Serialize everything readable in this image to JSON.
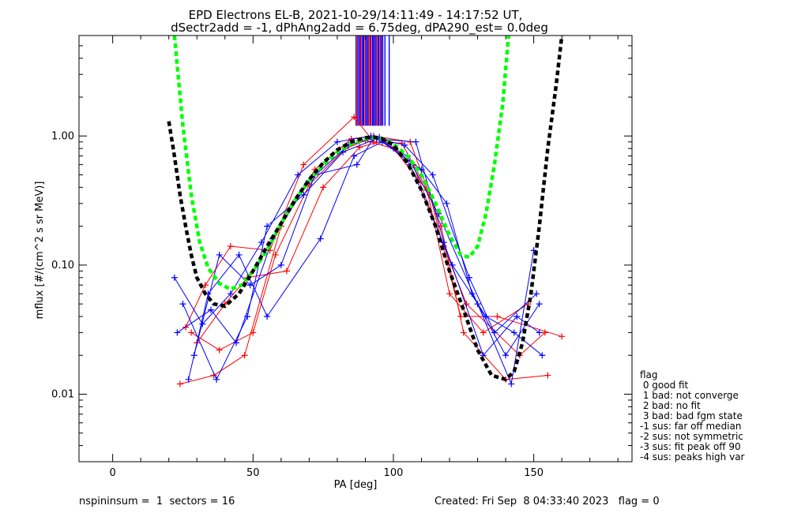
{
  "title_line1": "EPD Electrons EL-B, 2021-10-29/14:11:49 - 14:17:52 UT,",
  "title_line2": "dSectr2add = -1, dPhAng2add = 6.75deg, dPA290_est=   0.0deg",
  "footer_left": "nspininsum =  1  sectors = 16",
  "footer_right": "Created: Fri Sep  8 04:33:40 2023   flag = 0",
  "legend": {
    "title": "flag",
    "items": [
      " 0 good fit",
      " 1 bad: not converge",
      " 2 bad: no fit",
      " 3 bad: bad fgm state",
      "-1 sus: far off median",
      "-2 sus: not symmetric",
      "-3 sus: fit peak off 90",
      "-4 sus: peaks high var"
    ]
  },
  "colors": {
    "red": "#ff0000",
    "blue": "#0000ff",
    "green": "#00ff00",
    "black": "#000000"
  },
  "chart_data": {
    "type": "line",
    "title": "EPD Electrons EL-B, 2021-10-29/14:11:49 - 14:17:52 UT,",
    "subtitle": "dSectr2add = -1, dPhAng2add = 6.75deg, dPA290_est=   0.0deg",
    "xlabel": "PA [deg]",
    "ylabel": "mflux [#/(cm^2 s sr MeV)]",
    "xlim": [
      -12,
      185
    ],
    "ylim": [
      0.003,
      6.0
    ],
    "yscale": "log",
    "x_ticks": [
      0,
      50,
      100,
      150
    ],
    "x_tick_labels": [
      "0",
      "50",
      "100",
      "150"
    ],
    "y_ticks": [
      0.01,
      0.1,
      1.0
    ],
    "y_tick_labels": [
      "0.01",
      "0.10",
      "1.00"
    ],
    "grid": false,
    "series": [
      {
        "color": "red",
        "type": "line+plus",
        "x": [
          24,
          36,
          47,
          60,
          72,
          85,
          93,
          106,
          117,
          125,
          140,
          155
        ],
        "y": [
          0.012,
          0.014,
          0.02,
          0.2,
          0.55,
          0.95,
          1.0,
          0.9,
          0.2,
          0.03,
          0.013,
          0.014
        ]
      },
      {
        "color": "red",
        "type": "line+plus",
        "x": [
          26,
          33,
          42,
          56,
          68,
          86,
          93,
          103,
          113,
          124,
          137,
          160
        ],
        "y": [
          0.033,
          0.07,
          0.14,
          0.13,
          0.6,
          1.4,
          0.9,
          0.88,
          0.35,
          0.04,
          0.04,
          0.028
        ]
      },
      {
        "color": "red",
        "type": "line+plus",
        "x": [
          28,
          38,
          50,
          58,
          70,
          83,
          90,
          100,
          112,
          120,
          132,
          148
        ],
        "y": [
          0.03,
          0.022,
          0.03,
          0.12,
          0.42,
          0.8,
          0.92,
          0.8,
          0.38,
          0.06,
          0.03,
          0.05
        ]
      },
      {
        "color": "red",
        "type": "line+plus",
        "x": [
          30,
          40,
          48,
          62,
          75,
          88,
          97,
          107,
          118,
          126,
          145,
          154
        ],
        "y": [
          0.025,
          0.05,
          0.08,
          0.09,
          0.4,
          0.82,
          0.92,
          0.6,
          0.14,
          0.05,
          0.02,
          0.03
        ]
      },
      {
        "color": "blue",
        "type": "line+plus",
        "x": [
          22,
          32,
          42,
          53,
          66,
          80,
          92,
          105,
          116,
          130,
          142,
          150
        ],
        "y": [
          0.08,
          0.035,
          0.06,
          0.15,
          0.5,
          0.9,
          1.0,
          0.7,
          0.25,
          0.05,
          0.012,
          0.13
        ]
      },
      {
        "color": "blue",
        "type": "line+plus",
        "x": [
          25,
          37,
          48,
          55,
          68,
          82,
          94,
          108,
          118,
          132,
          144,
          152
        ],
        "y": [
          0.05,
          0.013,
          0.04,
          0.2,
          0.35,
          0.75,
          0.95,
          0.9,
          0.15,
          0.02,
          0.04,
          0.03
        ]
      },
      {
        "color": "blue",
        "type": "line+plus",
        "x": [
          27,
          34,
          45,
          55,
          74,
          86,
          96,
          110,
          119,
          128,
          140,
          152
        ],
        "y": [
          0.013,
          0.06,
          0.12,
          0.04,
          0.16,
          0.7,
          0.9,
          0.55,
          0.3,
          0.06,
          0.02,
          0.05
        ]
      },
      {
        "color": "blue",
        "type": "line+plus",
        "x": [
          23,
          35,
          44,
          57,
          70,
          84,
          95,
          106,
          121,
          133,
          143,
          153
        ],
        "y": [
          0.03,
          0.045,
          0.025,
          0.16,
          0.45,
          0.85,
          0.98,
          0.6,
          0.1,
          0.04,
          0.03,
          0.02
        ]
      },
      {
        "color": "blue",
        "type": "line+plus",
        "x": [
          29,
          38,
          49,
          60,
          72,
          87,
          93,
          104,
          114,
          127,
          136,
          151
        ],
        "y": [
          0.02,
          0.12,
          0.07,
          0.1,
          0.5,
          0.6,
          0.97,
          0.85,
          0.5,
          0.08,
          0.03,
          0.06
        ]
      },
      {
        "color": "green",
        "type": "dashed-fit",
        "x": [
          22,
          25,
          28,
          31,
          34,
          38,
          42,
          46,
          50,
          55,
          60,
          65,
          70,
          75,
          80,
          85,
          90,
          93,
          96,
          100,
          105,
          110,
          115,
          120,
          124,
          127,
          130,
          133,
          136,
          139,
          141
        ],
        "y": [
          6.0,
          1.2,
          0.35,
          0.15,
          0.095,
          0.072,
          0.065,
          0.07,
          0.09,
          0.13,
          0.21,
          0.32,
          0.45,
          0.6,
          0.75,
          0.87,
          0.95,
          0.97,
          0.95,
          0.87,
          0.7,
          0.5,
          0.3,
          0.17,
          0.12,
          0.115,
          0.14,
          0.25,
          0.6,
          1.8,
          6.0
        ]
      },
      {
        "color": "black",
        "type": "dashed-fit",
        "x": [
          20,
          22,
          24,
          26,
          28,
          30,
          33,
          36,
          40,
          45,
          50,
          55,
          60,
          65,
          70,
          75,
          80,
          85,
          90,
          93,
          96,
          100,
          105,
          110,
          115,
          120,
          125,
          130,
          135,
          140,
          143,
          146,
          149,
          152,
          155,
          158,
          160
        ],
        "y": [
          1.3,
          0.7,
          0.35,
          0.2,
          0.12,
          0.08,
          0.06,
          0.05,
          0.048,
          0.06,
          0.09,
          0.14,
          0.21,
          0.32,
          0.46,
          0.62,
          0.78,
          0.9,
          0.97,
          0.98,
          0.95,
          0.85,
          0.62,
          0.38,
          0.2,
          0.09,
          0.045,
          0.022,
          0.014,
          0.013,
          0.015,
          0.025,
          0.06,
          0.2,
          0.8,
          2.5,
          6.0
        ]
      }
    ],
    "vertical_lines": {
      "x_range": [
        86.5,
        99
      ],
      "y_from": 1.2,
      "y_to": 6.0,
      "x": [
        86.7,
        87.2,
        87.6,
        88.1,
        88.5,
        89.0,
        89.4,
        89.9,
        90.3,
        90.8,
        91.2,
        91.7,
        92.1,
        92.6,
        93.0,
        93.5,
        93.9,
        94.4,
        94.8,
        95.3,
        95.7,
        96.2,
        97.0,
        98.5
      ],
      "colors": [
        "blue",
        "red",
        "blue",
        "blue",
        "red",
        "blue",
        "blue",
        "red",
        "blue",
        "blue",
        "red",
        "blue",
        "red",
        "blue",
        "blue",
        "blue",
        "red",
        "blue",
        "blue",
        "red",
        "blue",
        "blue",
        "blue",
        "blue"
      ]
    }
  }
}
